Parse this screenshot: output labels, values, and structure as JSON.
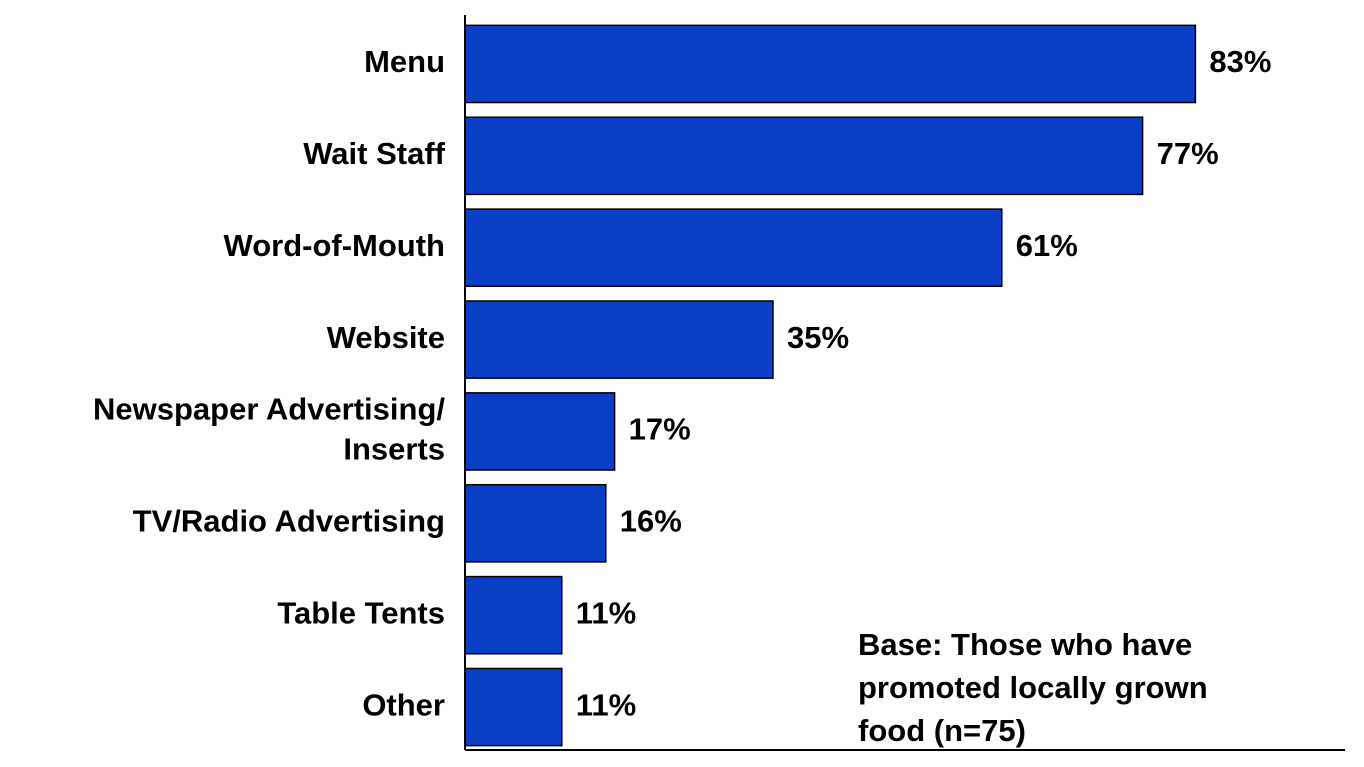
{
  "chart_data": {
    "type": "bar",
    "orientation": "horizontal",
    "categories": [
      "Menu",
      "Wait Staff",
      "Word-of-Mouth",
      "Website",
      "Newspaper Advertising/\nInserts",
      "TV/Radio Advertising",
      "Table Tents",
      "Other"
    ],
    "values": [
      83,
      77,
      61,
      35,
      17,
      16,
      11,
      11
    ],
    "value_labels": [
      "83%",
      "77%",
      "61%",
      "35%",
      "17%",
      "16%",
      "11%",
      "11%"
    ],
    "color": "#0a3ec4",
    "xlim": [
      0,
      100
    ],
    "annotation": "Base: Those who have\npromoted locally grown\nfood (n=75)"
  }
}
